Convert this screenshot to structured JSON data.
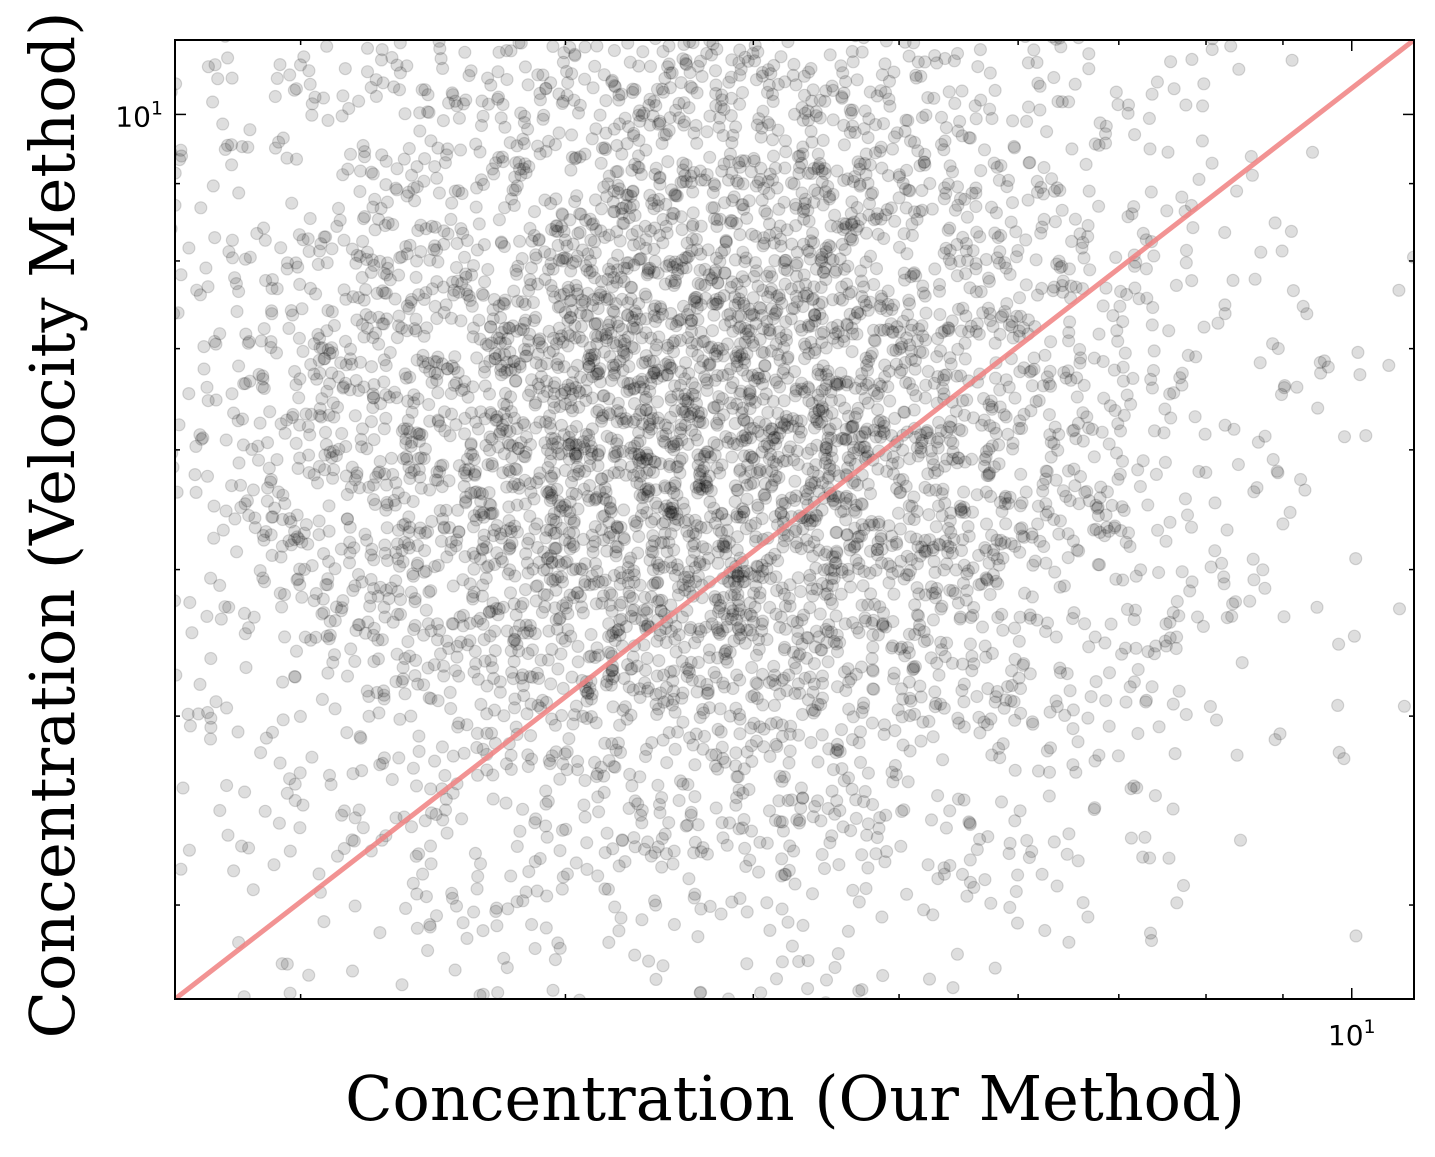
{
  "chart_data": {
    "type": "scatter",
    "title": "",
    "xlabel": "Concentration (Our Method)",
    "ylabel": "Concentration (Velocity Method)",
    "xscale": "log",
    "yscale": "log",
    "xlim": [
      1.65,
      11.0
    ],
    "ylim": [
      2.6,
      11.2
    ],
    "x_tick_labels": [
      {
        "value": 10,
        "base": "10",
        "exp": "1"
      }
    ],
    "y_tick_labels": [
      {
        "value": 10,
        "base": "10",
        "exp": "1"
      }
    ],
    "x_minor_ticks": [
      2,
      3,
      4,
      5,
      6,
      7,
      8,
      9
    ],
    "y_minor_ticks": [
      3,
      4,
      5,
      6,
      7,
      8,
      9
    ],
    "grid": false,
    "legend": "none",
    "reference_line": {
      "from": [
        1.65,
        2.6
      ],
      "to": [
        11.0,
        11.2
      ],
      "color": "#f08080",
      "opacity": 0.85
    },
    "point_color": "#000000",
    "point_opacity": 0.13,
    "approx_point_count": 6000,
    "point_distribution": {
      "description": "dense cloud of points",
      "log_center_x": 0.56,
      "log_center_y": 0.79,
      "log_sigma_x": 0.17,
      "log_sigma_y": 0.16
    }
  }
}
